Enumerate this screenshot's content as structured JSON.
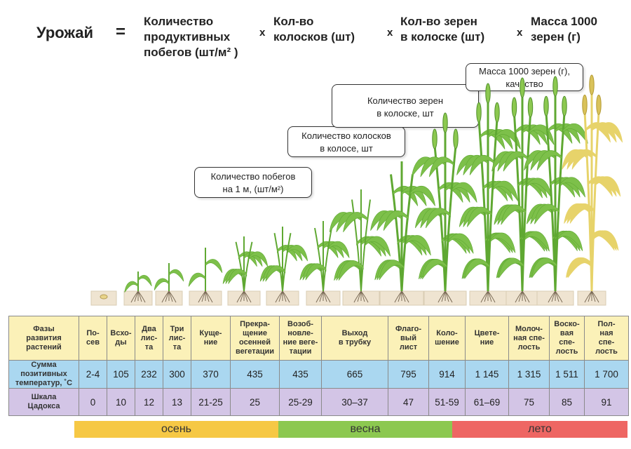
{
  "formula": {
    "result": "Урожай",
    "equals": "=",
    "times": "x",
    "terms": [
      "Количество\nпродуктивных\nпобегов (шт/м² )",
      "Кол-во\nколосков (шт)",
      "Кол-во зерен\nв колоске (шт)",
      "Масса 1000\nзерен (г)"
    ]
  },
  "callouts": [
    "Количество побегов\nна 1 м, (шт/м²)",
    "Количество колосков\nв колосе, шт",
    "Количество зерен\nв колоске, шт",
    "Масса 1000 зерен (г),\nкачество"
  ],
  "table": {
    "headers": {
      "phases": "Фазы\nразвития\nрастений",
      "temps": "Сумма\nпозитивных\nтемператур, ˚С",
      "zadoks": "Шкала\nЦадокса"
    },
    "phases": [
      "По-\nсев",
      "Всхо-\nды",
      "Два\nлис-\nта",
      "Три\nлис-\nта",
      "Куще-\nние",
      "Прекра-\nщение\nосенней\nвегетации",
      "Возоб-\nновле-\nние веге-\nтации",
      "Выход\nв трубку",
      "Флаго-\nвый\nлист",
      "Коло-\nшение",
      "Цвете-\nние",
      "Молоч-\nная спе-\nлость",
      "Воско-\nвая\nспе-\nлость",
      "Пол-\nная\nспе-\nлость"
    ],
    "temps": [
      "2-4",
      "105",
      "232",
      "300",
      "370",
      "435",
      "435",
      "665",
      "795",
      "914",
      "1 145",
      "1 315",
      "1 511",
      "1 700"
    ],
    "zadoks": [
      "0",
      "10",
      "12",
      "13",
      "21-25",
      "25",
      "25-29",
      "30–37",
      "47",
      "51-59",
      "61–69",
      "75",
      "85",
      "91"
    ]
  },
  "seasons": [
    {
      "label": "осень",
      "color": "#f6c845"
    },
    {
      "label": "весна",
      "color": "#8cc850"
    },
    {
      "label": "лето",
      "color": "#ee6663"
    }
  ],
  "colors": {
    "stem": "#5fa832",
    "leaf": "#7dc04a",
    "ripe": "#e7d36a",
    "soil": "#efe4d1",
    "root": "#7a6a55"
  }
}
